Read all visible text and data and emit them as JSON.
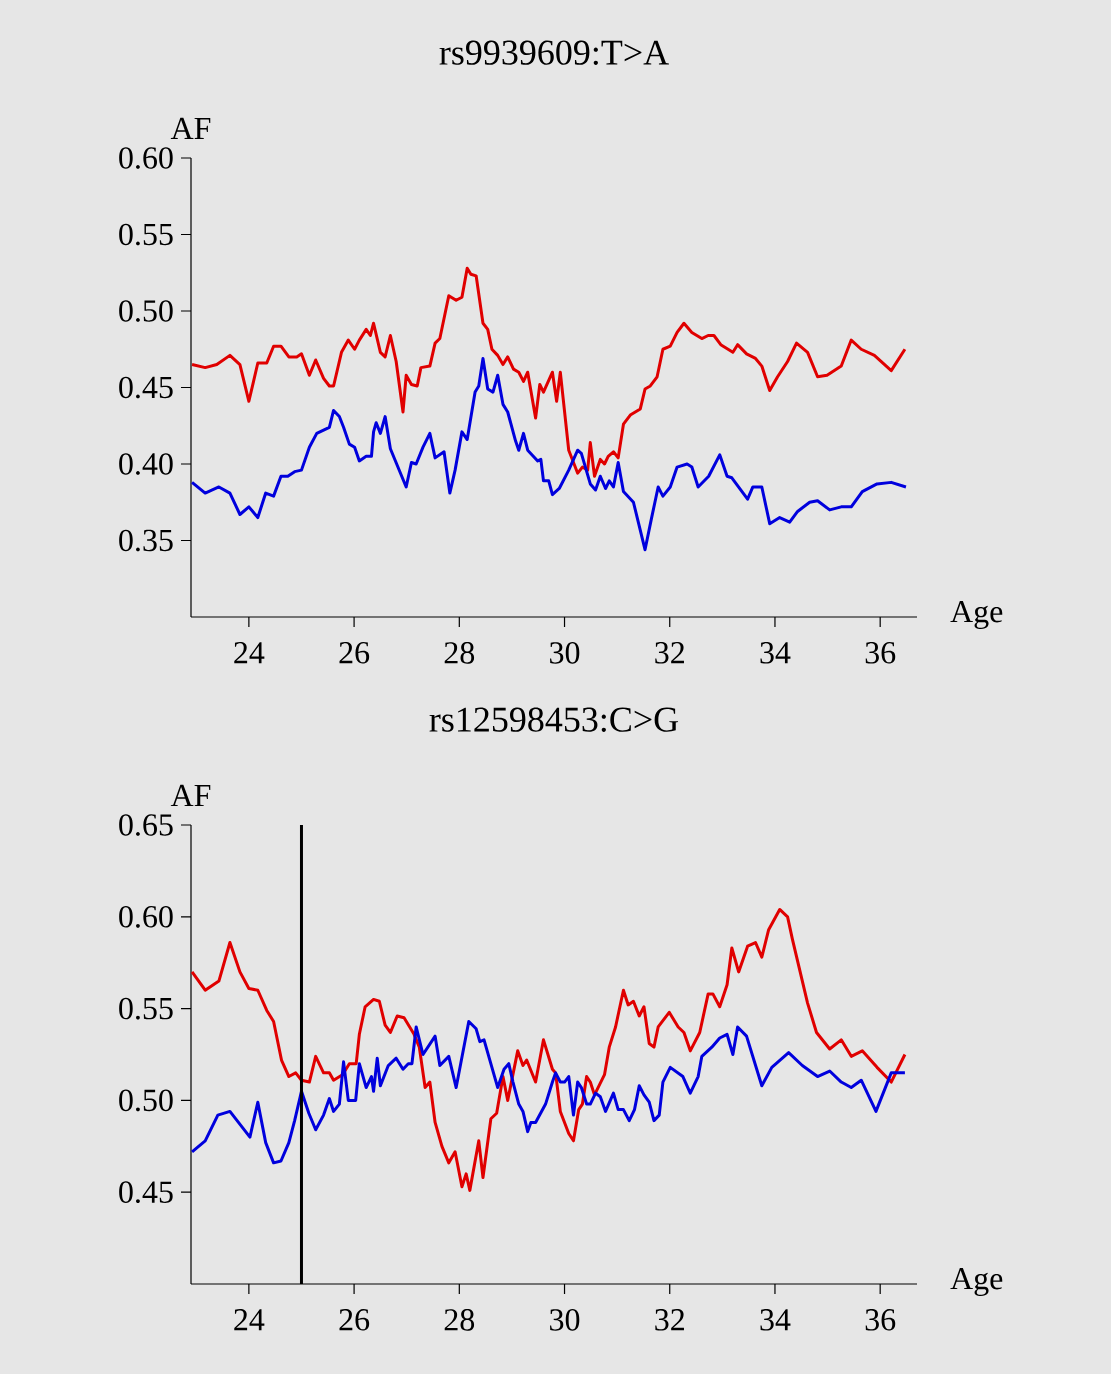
{
  "chart_data": [
    {
      "type": "line",
      "title": "rs9939609:T>A",
      "xlabel": "Age",
      "ylabel": "AF",
      "xlim": [
        22.9,
        36.7
      ],
      "ylim": [
        0.3,
        0.6
      ],
      "xticks": [
        24,
        26,
        28,
        30,
        32,
        34,
        36
      ],
      "yticks": [
        {
          "value": 0.35,
          "label": "0.35"
        },
        {
          "value": 0.4,
          "label": "0.40"
        },
        {
          "value": 0.45,
          "label": "0.45"
        },
        {
          "value": 0.5,
          "label": "0.50"
        },
        {
          "value": 0.55,
          "label": "0.55"
        },
        {
          "value": 0.6,
          "label": "0.60"
        }
      ],
      "series": [
        {
          "color": "#e00000",
          "x": [
            22.92,
            23.17,
            23.39,
            23.64,
            23.83,
            24.0,
            24.17,
            24.34,
            24.47,
            24.61,
            24.76,
            24.91,
            25.0,
            25.15,
            25.27,
            25.42,
            25.53,
            25.61,
            25.76,
            25.89,
            26.01,
            26.1,
            26.23,
            26.31,
            26.37,
            26.5,
            26.59,
            26.69,
            26.8,
            26.93,
            26.99,
            27.09,
            27.2,
            27.27,
            27.44,
            27.54,
            27.63,
            27.8,
            27.94,
            28.05,
            28.15,
            28.22,
            28.32,
            28.45,
            28.54,
            28.62,
            28.73,
            28.83,
            28.92,
            29.03,
            29.13,
            29.22,
            29.3,
            29.45,
            29.53,
            29.6,
            29.77,
            29.85,
            29.92,
            30.08,
            30.25,
            30.34,
            30.44,
            30.49,
            30.57,
            30.68,
            30.76,
            30.83,
            30.93,
            31.02,
            31.12,
            31.25,
            31.44,
            31.53,
            31.63,
            31.76,
            31.87,
            32.01,
            32.14,
            32.27,
            32.42,
            32.61,
            32.73,
            32.84,
            32.97,
            33.2,
            33.29,
            33.46,
            33.63,
            33.75,
            33.9,
            34.05,
            34.24,
            34.41,
            34.62,
            34.81,
            34.99,
            35.26,
            35.45,
            35.64,
            35.89,
            36.21,
            36.47
          ],
          "values": [
            0.465,
            0.463,
            0.465,
            0.471,
            0.465,
            0.441,
            0.466,
            0.466,
            0.477,
            0.477,
            0.47,
            0.47,
            0.472,
            0.458,
            0.468,
            0.456,
            0.451,
            0.451,
            0.473,
            0.481,
            0.475,
            0.481,
            0.488,
            0.484,
            0.492,
            0.473,
            0.47,
            0.484,
            0.467,
            0.434,
            0.458,
            0.452,
            0.451,
            0.463,
            0.464,
            0.479,
            0.482,
            0.51,
            0.507,
            0.509,
            0.528,
            0.524,
            0.523,
            0.492,
            0.488,
            0.475,
            0.471,
            0.465,
            0.47,
            0.462,
            0.46,
            0.454,
            0.46,
            0.43,
            0.452,
            0.447,
            0.46,
            0.441,
            0.46,
            0.409,
            0.394,
            0.398,
            0.396,
            0.414,
            0.392,
            0.403,
            0.4,
            0.405,
            0.408,
            0.404,
            0.426,
            0.432,
            0.436,
            0.449,
            0.451,
            0.457,
            0.475,
            0.477,
            0.486,
            0.492,
            0.486,
            0.482,
            0.484,
            0.484,
            0.478,
            0.473,
            0.478,
            0.472,
            0.469,
            0.464,
            0.448,
            0.457,
            0.467,
            0.479,
            0.473,
            0.457,
            0.458,
            0.464,
            0.481,
            0.475,
            0.471,
            0.461,
            0.475
          ]
        },
        {
          "color": "#0000dd",
          "x": [
            22.92,
            23.17,
            23.43,
            23.64,
            23.83,
            24.0,
            24.17,
            24.32,
            24.47,
            24.61,
            24.74,
            24.87,
            25.0,
            25.15,
            25.29,
            25.53,
            25.61,
            25.72,
            25.8,
            25.91,
            26.01,
            26.1,
            26.23,
            26.33,
            26.37,
            26.42,
            26.5,
            26.59,
            26.69,
            26.99,
            27.09,
            27.18,
            27.31,
            27.44,
            27.54,
            27.71,
            27.82,
            27.92,
            28.05,
            28.15,
            28.3,
            28.37,
            28.45,
            28.54,
            28.64,
            28.73,
            28.83,
            28.92,
            29.07,
            29.13,
            29.22,
            29.3,
            29.49,
            29.55,
            29.6,
            29.7,
            29.77,
            29.9,
            30.08,
            30.25,
            30.32,
            30.49,
            30.59,
            30.68,
            30.78,
            30.85,
            30.93,
            31.02,
            31.12,
            31.31,
            31.53,
            31.65,
            31.78,
            31.87,
            32.01,
            32.14,
            32.33,
            32.42,
            32.54,
            32.74,
            32.95,
            33.09,
            33.18,
            33.48,
            33.58,
            33.75,
            33.9,
            34.09,
            34.28,
            34.43,
            34.66,
            34.81,
            35.04,
            35.26,
            35.45,
            35.66,
            35.94,
            36.21,
            36.49
          ],
          "values": [
            0.388,
            0.381,
            0.385,
            0.381,
            0.367,
            0.372,
            0.365,
            0.381,
            0.379,
            0.392,
            0.392,
            0.395,
            0.396,
            0.411,
            0.42,
            0.424,
            0.435,
            0.431,
            0.424,
            0.413,
            0.411,
            0.402,
            0.405,
            0.405,
            0.421,
            0.427,
            0.42,
            0.431,
            0.41,
            0.385,
            0.401,
            0.4,
            0.411,
            0.42,
            0.404,
            0.408,
            0.381,
            0.396,
            0.421,
            0.416,
            0.447,
            0.451,
            0.469,
            0.449,
            0.447,
            0.458,
            0.439,
            0.434,
            0.415,
            0.409,
            0.42,
            0.409,
            0.402,
            0.403,
            0.389,
            0.389,
            0.38,
            0.384,
            0.396,
            0.409,
            0.407,
            0.387,
            0.383,
            0.392,
            0.384,
            0.389,
            0.385,
            0.401,
            0.382,
            0.375,
            0.344,
            0.364,
            0.385,
            0.379,
            0.385,
            0.398,
            0.4,
            0.398,
            0.385,
            0.392,
            0.406,
            0.392,
            0.391,
            0.377,
            0.385,
            0.385,
            0.361,
            0.365,
            0.362,
            0.369,
            0.375,
            0.376,
            0.37,
            0.372,
            0.372,
            0.382,
            0.387,
            0.388,
            0.385
          ]
        }
      ]
    },
    {
      "type": "line",
      "title": "rs12598453:C>G",
      "xlabel": "Age",
      "ylabel": "AF",
      "xlim": [
        22.9,
        36.7
      ],
      "ylim": [
        0.4,
        0.65
      ],
      "xticks": [
        24,
        26,
        28,
        30,
        32,
        34,
        36
      ],
      "yticks": [
        {
          "value": 0.45,
          "label": "0.45"
        },
        {
          "value": 0.5,
          "label": "0.50"
        },
        {
          "value": 0.55,
          "label": "0.55"
        },
        {
          "value": 0.6,
          "label": "0.60"
        },
        {
          "value": 0.65,
          "label": "0.65"
        }
      ],
      "ref_lines": [
        {
          "axis": "x",
          "value": 25,
          "color": "#000000"
        }
      ],
      "series": [
        {
          "color": "#e00000",
          "x": [
            22.92,
            23.17,
            23.43,
            23.64,
            23.83,
            24.0,
            24.17,
            24.34,
            24.47,
            24.62,
            24.76,
            24.89,
            25.0,
            25.15,
            25.27,
            25.42,
            25.53,
            25.61,
            25.78,
            25.91,
            26.04,
            26.1,
            26.21,
            26.37,
            26.48,
            26.59,
            26.69,
            26.82,
            26.95,
            27.14,
            27.24,
            27.35,
            27.44,
            27.54,
            27.67,
            27.8,
            27.92,
            28.05,
            28.13,
            28.2,
            28.37,
            28.45,
            28.6,
            28.71,
            28.83,
            28.92,
            29.11,
            29.21,
            29.28,
            29.45,
            29.6,
            29.77,
            29.83,
            29.92,
            30.08,
            30.17,
            30.27,
            30.34,
            30.42,
            30.49,
            30.57,
            30.76,
            30.85,
            30.97,
            31.12,
            31.21,
            31.31,
            31.42,
            31.51,
            31.61,
            31.7,
            31.78,
            31.99,
            32.16,
            32.27,
            32.39,
            32.57,
            32.73,
            32.82,
            32.95,
            33.09,
            33.18,
            33.31,
            33.48,
            33.63,
            33.75,
            33.88,
            34.09,
            34.24,
            34.33,
            34.62,
            34.79,
            35.04,
            35.26,
            35.45,
            35.66,
            35.94,
            36.21,
            36.47
          ],
          "values": [
            0.57,
            0.56,
            0.565,
            0.586,
            0.57,
            0.561,
            0.56,
            0.549,
            0.543,
            0.522,
            0.513,
            0.515,
            0.511,
            0.51,
            0.524,
            0.515,
            0.515,
            0.511,
            0.514,
            0.52,
            0.52,
            0.536,
            0.551,
            0.555,
            0.554,
            0.541,
            0.537,
            0.546,
            0.545,
            0.536,
            0.529,
            0.507,
            0.51,
            0.488,
            0.475,
            0.466,
            0.472,
            0.453,
            0.46,
            0.451,
            0.478,
            0.458,
            0.49,
            0.493,
            0.513,
            0.5,
            0.527,
            0.519,
            0.522,
            0.51,
            0.533,
            0.517,
            0.515,
            0.494,
            0.482,
            0.478,
            0.495,
            0.498,
            0.513,
            0.51,
            0.503,
            0.514,
            0.529,
            0.54,
            0.56,
            0.552,
            0.554,
            0.546,
            0.551,
            0.531,
            0.529,
            0.54,
            0.548,
            0.54,
            0.537,
            0.527,
            0.537,
            0.558,
            0.558,
            0.551,
            0.563,
            0.583,
            0.57,
            0.584,
            0.586,
            0.578,
            0.593,
            0.604,
            0.6,
            0.588,
            0.553,
            0.537,
            0.528,
            0.533,
            0.524,
            0.527,
            0.518,
            0.51,
            0.525
          ]
        },
        {
          "color": "#0000dd",
          "x": [
            22.92,
            23.17,
            23.41,
            23.64,
            23.83,
            24.02,
            24.17,
            24.32,
            24.47,
            24.61,
            24.76,
            24.87,
            25.0,
            25.14,
            25.27,
            25.42,
            25.53,
            25.61,
            25.72,
            25.8,
            25.89,
            26.03,
            26.1,
            26.23,
            26.33,
            26.37,
            26.44,
            26.5,
            26.65,
            26.8,
            26.93,
            27.03,
            27.1,
            27.18,
            27.31,
            27.54,
            27.63,
            27.8,
            27.94,
            28.18,
            28.32,
            28.39,
            28.47,
            28.73,
            28.85,
            28.94,
            29.02,
            29.13,
            29.21,
            29.3,
            29.36,
            29.45,
            29.64,
            29.77,
            29.83,
            29.92,
            30.0,
            30.08,
            30.17,
            30.25,
            30.32,
            30.42,
            30.49,
            30.59,
            30.68,
            30.78,
            30.93,
            31.02,
            31.12,
            31.23,
            31.33,
            31.42,
            31.51,
            31.61,
            31.7,
            31.8,
            31.87,
            32.01,
            32.25,
            32.39,
            32.54,
            32.61,
            32.8,
            32.95,
            33.09,
            33.2,
            33.29,
            33.46,
            33.75,
            33.94,
            34.26,
            34.52,
            34.81,
            35.04,
            35.26,
            35.45,
            35.64,
            35.92,
            36.21,
            36.47
          ],
          "values": [
            0.472,
            0.478,
            0.492,
            0.494,
            0.487,
            0.48,
            0.499,
            0.477,
            0.466,
            0.467,
            0.477,
            0.489,
            0.505,
            0.493,
            0.484,
            0.492,
            0.501,
            0.494,
            0.498,
            0.521,
            0.5,
            0.5,
            0.52,
            0.507,
            0.513,
            0.505,
            0.523,
            0.508,
            0.519,
            0.523,
            0.517,
            0.52,
            0.52,
            0.54,
            0.525,
            0.535,
            0.519,
            0.524,
            0.507,
            0.543,
            0.539,
            0.532,
            0.533,
            0.507,
            0.517,
            0.52,
            0.51,
            0.498,
            0.494,
            0.483,
            0.488,
            0.488,
            0.498,
            0.51,
            0.515,
            0.51,
            0.51,
            0.513,
            0.492,
            0.51,
            0.507,
            0.498,
            0.498,
            0.504,
            0.502,
            0.494,
            0.504,
            0.495,
            0.495,
            0.489,
            0.495,
            0.508,
            0.503,
            0.499,
            0.489,
            0.492,
            0.51,
            0.518,
            0.513,
            0.504,
            0.513,
            0.524,
            0.529,
            0.534,
            0.536,
            0.525,
            0.54,
            0.535,
            0.508,
            0.518,
            0.526,
            0.519,
            0.513,
            0.516,
            0.51,
            0.507,
            0.511,
            0.494,
            0.515,
            0.515
          ]
        }
      ]
    }
  ]
}
